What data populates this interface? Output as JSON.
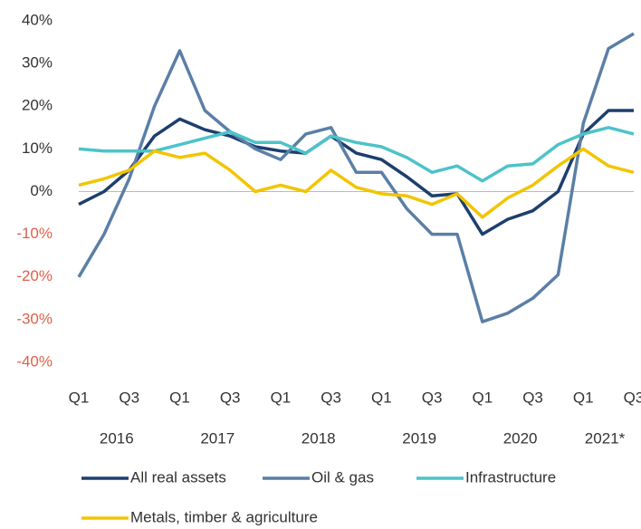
{
  "chart_data": {
    "type": "line",
    "categories": [
      "Q1",
      null,
      "Q3",
      null,
      "Q1",
      null,
      "Q3",
      null,
      "Q1",
      null,
      "Q3",
      null,
      "Q1",
      null,
      "Q3",
      null,
      "Q1",
      null,
      "Q3",
      null,
      "Q1",
      null,
      "Q3"
    ],
    "year_labels": [
      "2016",
      "2017",
      "2018",
      "2019",
      "2020",
      "2021*"
    ],
    "series": [
      {
        "name": "All real assets",
        "color": "#1c3f6e",
        "values": [
          -3,
          0,
          5,
          13,
          17,
          14.5,
          13,
          10.5,
          9.5,
          9,
          13,
          9,
          7.5,
          3.5,
          -1,
          -0.5,
          -10,
          -6.5,
          -4.5,
          0,
          13.5,
          19,
          19
        ]
      },
      {
        "name": "Oil & gas",
        "color": "#5b7fa6",
        "values": [
          -20,
          -10,
          3,
          20,
          33,
          19,
          14,
          10,
          7.5,
          13.5,
          15,
          4.5,
          4.5,
          -4,
          -10,
          -10,
          -30.5,
          -28.5,
          -25,
          -19.5,
          16,
          33.5,
          37
        ]
      },
      {
        "name": "Infrastructure",
        "color": "#4cc3c9",
        "values": [
          10,
          9.5,
          9.5,
          9.5,
          11,
          12.5,
          14,
          11.5,
          11.5,
          9,
          13,
          11.5,
          10.5,
          8,
          4.5,
          6,
          2.5,
          6,
          6.5,
          11,
          13.5,
          15,
          13.5
        ]
      },
      {
        "name": "Metals, timber & agriculture",
        "color": "#f2c500",
        "values": [
          1.5,
          3,
          5,
          9.5,
          8,
          9,
          5,
          0,
          1.5,
          0,
          5,
          1,
          -0.5,
          -1,
          -3,
          -0.5,
          -6,
          -1.5,
          1.5,
          6,
          10,
          6,
          4.5
        ]
      }
    ],
    "ylim": [
      -40,
      40
    ],
    "yticks": [
      {
        "value": 40,
        "label": "40%"
      },
      {
        "value": 30,
        "label": "30%"
      },
      {
        "value": 20,
        "label": "20%"
      },
      {
        "value": 10,
        "label": "10%"
      },
      {
        "value": 0,
        "label": "0%"
      },
      {
        "value": -10,
        "label": "-10%"
      },
      {
        "value": -20,
        "label": "-20%"
      },
      {
        "value": -30,
        "label": "-30%"
      },
      {
        "value": -40,
        "label": "-40%"
      }
    ],
    "negative_tick_color": "#e0604a",
    "zero_line": true,
    "legend": "bottom"
  }
}
